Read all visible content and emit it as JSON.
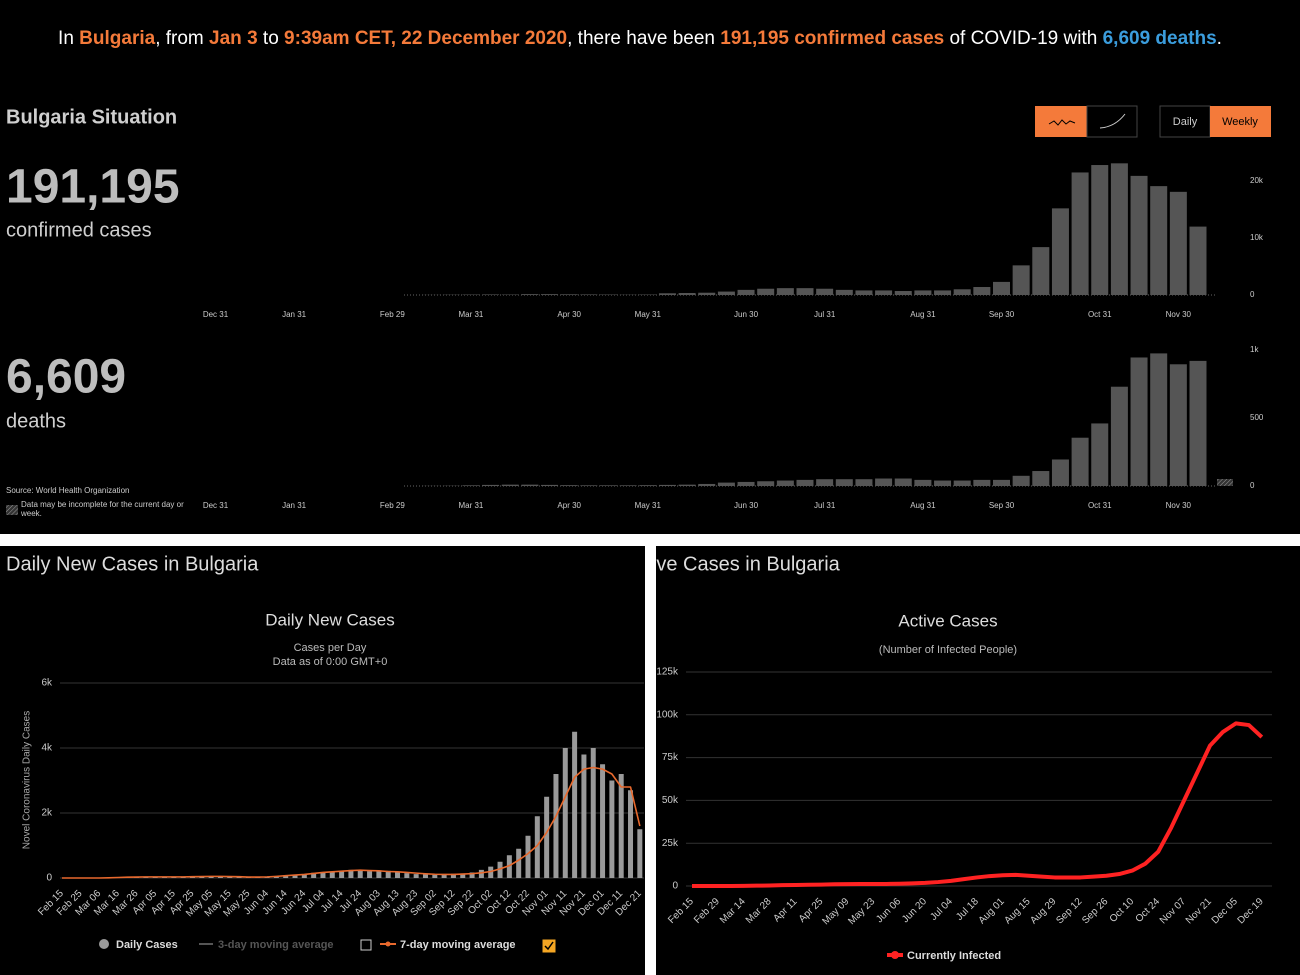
{
  "header": {
    "parts": [
      {
        "text": "In ",
        "color": "#ffffff"
      },
      {
        "text": "Bulgaria",
        "color": "#f47a3a"
      },
      {
        "text": ", from ",
        "color": "#ffffff"
      },
      {
        "text": "Jan 3",
        "color": "#f47a3a"
      },
      {
        "text": " to ",
        "color": "#ffffff"
      },
      {
        "text": "9:39am CET, 22 December 2020",
        "color": "#f47a3a"
      },
      {
        "text": ", there have been ",
        "color": "#ffffff"
      },
      {
        "text": "191,195 confirmed cases",
        "color": "#f47a3a"
      },
      {
        "text": " of COVID-19 with ",
        "color": "#ffffff"
      },
      {
        "text": "6,609 deaths",
        "color": "#3b9ddd"
      },
      {
        "text": ".",
        "color": "#ffffff"
      }
    ]
  },
  "situation": {
    "title": "Bulgaria Situation",
    "buttons": [
      "Daily",
      "Weekly"
    ],
    "confirmed": {
      "number": "191,195",
      "label": "confirmed cases"
    },
    "deaths": {
      "number": "6,609",
      "label": "deaths"
    },
    "source": "Source: World Health Organization",
    "note": "Data may be incomplete for the current day or week."
  },
  "chart_data": [
    {
      "type": "bar",
      "color": "#555555",
      "categories": [
        "Dec 31",
        null,
        null,
        null,
        "Jan 31",
        null,
        null,
        null,
        null,
        "Feb 29",
        null,
        null,
        null,
        "Mar 31",
        null,
        null,
        null,
        null,
        "Apr 30",
        null,
        null,
        null,
        "May 31",
        null,
        null,
        null,
        null,
        "Jun 30",
        null,
        null,
        null,
        "Jul 31",
        null,
        null,
        null,
        null,
        "Aug 31",
        null,
        null,
        null,
        "Sep 30",
        null,
        null,
        null,
        null,
        "Oct 31",
        null,
        null,
        null,
        "Nov 30",
        null
      ],
      "values": [
        null,
        null,
        null,
        null,
        null,
        null,
        null,
        null,
        null,
        null,
        0,
        20,
        50,
        80,
        100,
        80,
        150,
        150,
        120,
        100,
        80,
        50,
        80,
        300,
        350,
        400,
        600,
        900,
        1100,
        1200,
        1200,
        1100,
        900,
        800,
        800,
        700,
        800,
        800,
        1000,
        1400,
        2300,
        5200,
        8400,
        15200,
        21500,
        22800,
        23100,
        20900,
        19100,
        18100,
        12000
      ],
      "ylim": [
        0,
        25000
      ],
      "yticks": [
        0,
        {
          "value": 10000,
          "label": "10k"
        },
        {
          "value": 20000,
          "label": "20k"
        }
      ],
      "grid": false
    },
    {
      "type": "bar",
      "color": "#555555",
      "categories": [
        "Dec 31",
        null,
        null,
        null,
        "Jan 31",
        null,
        null,
        null,
        null,
        "Feb 29",
        null,
        null,
        null,
        "Mar 31",
        null,
        null,
        null,
        null,
        "Apr 30",
        null,
        null,
        null,
        "May 31",
        null,
        null,
        null,
        null,
        "Jun 30",
        null,
        null,
        null,
        "Jul 31",
        null,
        null,
        null,
        null,
        "Aug 31",
        null,
        null,
        null,
        "Sep 30",
        null,
        null,
        null,
        null,
        "Oct 31",
        null,
        null,
        null,
        "Nov 30",
        null
      ],
      "values": [
        null,
        null,
        null,
        null,
        null,
        null,
        null,
        null,
        null,
        null,
        0,
        1,
        2,
        5,
        8,
        10,
        10,
        8,
        6,
        5,
        5,
        5,
        6,
        8,
        10,
        15,
        25,
        30,
        35,
        40,
        45,
        50,
        50,
        50,
        55,
        55,
        45,
        40,
        40,
        45,
        45,
        75,
        110,
        195,
        355,
        460,
        730,
        945,
        975,
        895,
        920
      ],
      "ylim": [
        0,
        1000
      ],
      "yticks": [
        0,
        500,
        {
          "value": 1000,
          "label": "1k"
        }
      ],
      "grid": false
    },
    {
      "type": "bar",
      "heading": "Daily New Cases in Bulgaria",
      "title": "Daily New Cases",
      "subtitle": [
        "Cases per Day",
        "Data as of 0:00 GMT+0"
      ],
      "ylabel": "Novel Coronavirus Daily Cases",
      "categories": [
        "Feb 15",
        null,
        "Feb 25",
        null,
        "Mar 06",
        null,
        "Mar 16",
        null,
        "Mar 26",
        null,
        "Apr 05",
        null,
        "Apr 15",
        null,
        "Apr 25",
        null,
        "May 05",
        null,
        "May 15",
        null,
        "May 25",
        null,
        "Jun 04",
        null,
        "Jun 14",
        null,
        "Jun 24",
        null,
        "Jul 04",
        null,
        "Jul 14",
        null,
        "Jul 24",
        null,
        "Aug 03",
        null,
        "Aug 13",
        null,
        "Aug 23",
        null,
        "Sep 02",
        null,
        "Sep 12",
        null,
        "Sep 22",
        null,
        "Oct 02",
        null,
        "Oct 12",
        null,
        "Oct 22",
        null,
        "Nov 01",
        null,
        "Nov 11",
        null,
        "Nov 21",
        null,
        "Dec 01",
        null,
        "Dec 11",
        null,
        "Dec 21"
      ],
      "series": [
        {
          "name": "Daily Cases",
          "type": "bar",
          "color": "#9a9a9a",
          "values": [
            0,
            0,
            0,
            0,
            0,
            5,
            20,
            30,
            40,
            30,
            40,
            30,
            40,
            30,
            40,
            50,
            60,
            40,
            50,
            30,
            20,
            30,
            40,
            60,
            80,
            100,
            120,
            160,
            180,
            200,
            230,
            250,
            260,
            210,
            200,
            220,
            180,
            150,
            120,
            110,
            100,
            120,
            130,
            140,
            170,
            250,
            350,
            500,
            700,
            900,
            1300,
            1900,
            2500,
            3200,
            4000,
            4500,
            3800,
            4000,
            3500,
            3000,
            3200,
            2700,
            1500
          ]
        },
        {
          "name": "7-day moving average",
          "type": "line",
          "color": "#e8692d",
          "values": [
            0,
            0,
            0,
            0,
            0,
            5,
            15,
            25,
            30,
            35,
            35,
            35,
            35,
            35,
            40,
            45,
            50,
            50,
            45,
            40,
            30,
            30,
            35,
            50,
            70,
            90,
            110,
            140,
            170,
            190,
            210,
            230,
            240,
            230,
            220,
            200,
            190,
            170,
            150,
            130,
            115,
            110,
            110,
            120,
            135,
            160,
            200,
            280,
            380,
            550,
            750,
            1000,
            1400,
            1900,
            2500,
            3100,
            3350,
            3400,
            3350,
            3200,
            2800,
            2800,
            1600
          ]
        }
      ],
      "inactive_series": [
        {
          "name": "3-day moving average",
          "color": "#555555"
        }
      ],
      "ylim": [
        0,
        6000
      ],
      "yticks": [
        0,
        {
          "value": 2000,
          "label": "2k"
        },
        {
          "value": 4000,
          "label": "4k"
        },
        {
          "value": 6000,
          "label": "6k"
        }
      ],
      "grid": true
    },
    {
      "type": "line",
      "heading": "Active Cases in Bulgaria",
      "title": "Active Cases",
      "subtitle": "(Number of Infected People)",
      "categories": [
        "Feb 15",
        null,
        "Feb 29",
        null,
        "Mar 14",
        null,
        "Mar 28",
        null,
        "Apr 11",
        null,
        "Apr 25",
        null,
        "May 09",
        null,
        "May 23",
        null,
        "Jun 06",
        null,
        "Jun 20",
        null,
        "Jul 04",
        null,
        "Jul 18",
        null,
        "Aug 01",
        null,
        "Aug 15",
        null,
        "Aug 29",
        null,
        "Sep 12",
        null,
        "Sep 26",
        null,
        "Oct 10",
        null,
        "Oct 24",
        null,
        "Nov 07",
        null,
        "Nov 21",
        null,
        "Dec 05",
        null,
        "Dec 19"
      ],
      "series": [
        {
          "name": "Currently Infected",
          "color": "#ff2222",
          "values": [
            0,
            0,
            0,
            0,
            50,
            200,
            300,
            500,
            600,
            700,
            800,
            1000,
            1100,
            1200,
            1200,
            1200,
            1300,
            1500,
            1800,
            2300,
            3000,
            4000,
            5000,
            5800,
            6300,
            6500,
            6000,
            5500,
            5000,
            5000,
            5000,
            5500,
            6000,
            7000,
            9000,
            13000,
            20000,
            34000,
            50000,
            66000,
            82000,
            90000,
            95000,
            94000,
            87000
          ]
        }
      ],
      "ylim": [
        0,
        125000
      ],
      "yticks": [
        0,
        {
          "value": 25000,
          "label": "25k"
        },
        {
          "value": 50000,
          "label": "50k"
        },
        {
          "value": 75000,
          "label": "75k"
        },
        {
          "value": 100000,
          "label": "100k"
        },
        {
          "value": 125000,
          "label": "125k"
        }
      ],
      "grid": true
    }
  ]
}
